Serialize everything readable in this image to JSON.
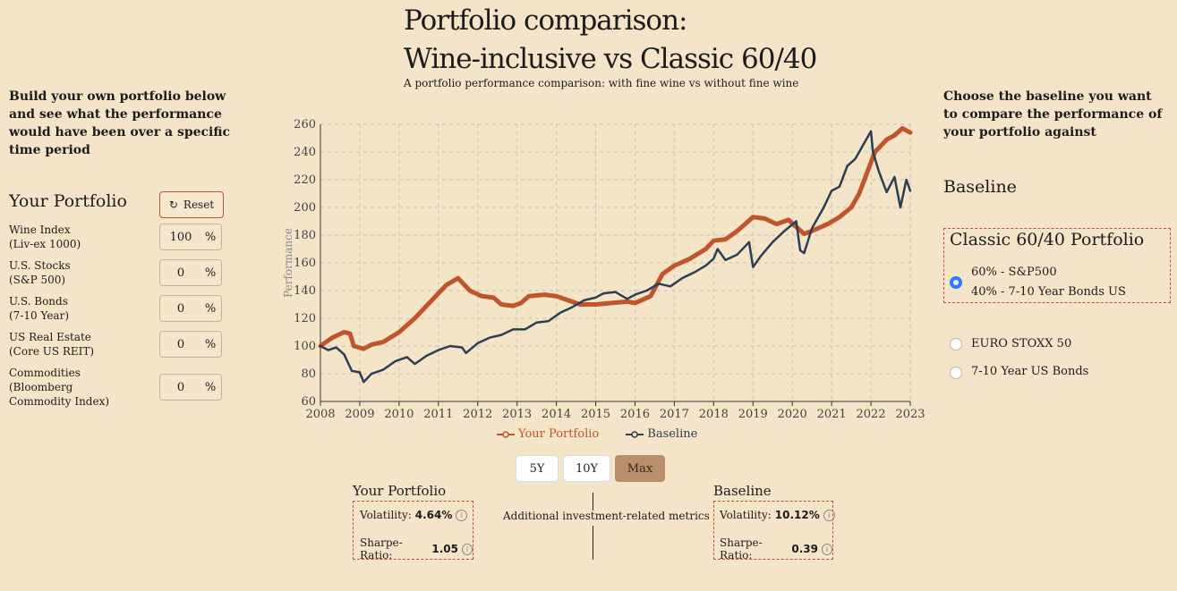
{
  "header": {
    "title_line1": "Portfolio comparison:",
    "title_line2": "Wine-inclusive vs Classic 60/40",
    "subtitle": "A portfolio performance comparison: with fine wine vs without fine wine"
  },
  "left": {
    "intro": "Build your own portfolio below and see what the performance would have been over a specific time period",
    "heading": "Your Portfolio",
    "reset_label": "Reset",
    "assets": [
      {
        "label": "Wine Index\n(Liv-ex 1000)",
        "value": "100",
        "unit": "%"
      },
      {
        "label": "U.S. Stocks\n(S&P 500)",
        "value": "0",
        "unit": "%"
      },
      {
        "label": "U.S. Bonds\n(7-10 Year)",
        "value": "0",
        "unit": "%"
      },
      {
        "label": "US Real Estate\n(Core US REIT)",
        "value": "0",
        "unit": "%"
      },
      {
        "label": "Commodities\n(Bloomberg\nCommodity Index)",
        "value": "0",
        "unit": "%"
      }
    ]
  },
  "right": {
    "intro": "Choose the baseline you want to compare the performance of your portfolio against",
    "heading": "Baseline",
    "options": [
      {
        "title": "Classic 60/40 Portfolio",
        "line1": "60% - S&P500",
        "line2": "40% - 7-10 Year Bonds US",
        "selected": true
      },
      {
        "title": "EURO STOXX 50",
        "selected": false
      },
      {
        "title": "7-10 Year US Bonds",
        "selected": false
      }
    ]
  },
  "chart_data": {
    "type": "line",
    "title": "",
    "xlabel": "",
    "ylabel": "Performance",
    "xlim": [
      2008,
      2023
    ],
    "ylim": [
      60,
      260
    ],
    "x_ticks": [
      "2008",
      "2009",
      "2010",
      "2011",
      "2012",
      "2013",
      "2014",
      "2015",
      "2016",
      "2017",
      "2018",
      "2019",
      "2020",
      "2021",
      "2022",
      "2023"
    ],
    "y_ticks": [
      60,
      80,
      100,
      120,
      140,
      160,
      180,
      200,
      220,
      240,
      260
    ],
    "grid": true,
    "legend": "bottom",
    "series": [
      {
        "name": "Your Portfolio",
        "color": "#c0542a",
        "points": [
          [
            2008,
            100
          ],
          [
            2008.3,
            106
          ],
          [
            2008.6,
            110
          ],
          [
            2008.75,
            109
          ],
          [
            2008.85,
            100
          ],
          [
            2009.1,
            98
          ],
          [
            2009.3,
            101
          ],
          [
            2009.6,
            103
          ],
          [
            2010,
            110
          ],
          [
            2010.4,
            120
          ],
          [
            2010.8,
            132
          ],
          [
            2011.2,
            144
          ],
          [
            2011.5,
            149
          ],
          [
            2011.8,
            140
          ],
          [
            2012.1,
            136
          ],
          [
            2012.4,
            135
          ],
          [
            2012.6,
            130
          ],
          [
            2012.9,
            129
          ],
          [
            2013.1,
            131
          ],
          [
            2013.3,
            136
          ],
          [
            2013.7,
            137
          ],
          [
            2014,
            136
          ],
          [
            2014.3,
            133
          ],
          [
            2014.6,
            130
          ],
          [
            2015,
            130
          ],
          [
            2015.4,
            131
          ],
          [
            2015.8,
            132
          ],
          [
            2016,
            131
          ],
          [
            2016.4,
            136
          ],
          [
            2016.7,
            152
          ],
          [
            2017,
            158
          ],
          [
            2017.4,
            163
          ],
          [
            2017.8,
            170
          ],
          [
            2018,
            176
          ],
          [
            2018.3,
            177
          ],
          [
            2018.6,
            183
          ],
          [
            2018.8,
            188
          ],
          [
            2019,
            193
          ],
          [
            2019.3,
            192
          ],
          [
            2019.6,
            188
          ],
          [
            2019.9,
            191
          ],
          [
            2020.1,
            186
          ],
          [
            2020.3,
            181
          ],
          [
            2020.5,
            183
          ],
          [
            2020.9,
            188
          ],
          [
            2021.2,
            193
          ],
          [
            2021.5,
            200
          ],
          [
            2021.7,
            210
          ],
          [
            2021.9,
            225
          ],
          [
            2022.1,
            240
          ],
          [
            2022.4,
            249
          ],
          [
            2022.6,
            252
          ],
          [
            2022.8,
            257
          ],
          [
            2023,
            254
          ]
        ]
      },
      {
        "name": "Baseline",
        "color": "#2a3f55",
        "points": [
          [
            2008,
            100
          ],
          [
            2008.2,
            97
          ],
          [
            2008.4,
            99
          ],
          [
            2008.6,
            94
          ],
          [
            2008.8,
            82
          ],
          [
            2009,
            81
          ],
          [
            2009.1,
            74
          ],
          [
            2009.3,
            80
          ],
          [
            2009.6,
            83
          ],
          [
            2009.9,
            89
          ],
          [
            2010.2,
            92
          ],
          [
            2010.4,
            87
          ],
          [
            2010.7,
            93
          ],
          [
            2011,
            97
          ],
          [
            2011.3,
            100
          ],
          [
            2011.6,
            99
          ],
          [
            2011.7,
            95
          ],
          [
            2012,
            102
          ],
          [
            2012.3,
            106
          ],
          [
            2012.6,
            108
          ],
          [
            2012.9,
            112
          ],
          [
            2013.2,
            112
          ],
          [
            2013.5,
            117
          ],
          [
            2013.8,
            118
          ],
          [
            2014.1,
            124
          ],
          [
            2014.4,
            128
          ],
          [
            2014.7,
            133
          ],
          [
            2015,
            135
          ],
          [
            2015.2,
            138
          ],
          [
            2015.5,
            139
          ],
          [
            2015.8,
            134
          ],
          [
            2016,
            137
          ],
          [
            2016.3,
            140
          ],
          [
            2016.6,
            145
          ],
          [
            2016.9,
            143
          ],
          [
            2017.2,
            149
          ],
          [
            2017.5,
            153
          ],
          [
            2017.8,
            158
          ],
          [
            2018,
            163
          ],
          [
            2018.1,
            170
          ],
          [
            2018.3,
            162
          ],
          [
            2018.6,
            166
          ],
          [
            2018.9,
            175
          ],
          [
            2019,
            157
          ],
          [
            2019.2,
            165
          ],
          [
            2019.5,
            175
          ],
          [
            2019.8,
            183
          ],
          [
            2020.1,
            190
          ],
          [
            2020.2,
            169
          ],
          [
            2020.3,
            167
          ],
          [
            2020.5,
            185
          ],
          [
            2020.8,
            200
          ],
          [
            2021,
            212
          ],
          [
            2021.2,
            215
          ],
          [
            2021.4,
            230
          ],
          [
            2021.6,
            235
          ],
          [
            2021.8,
            245
          ],
          [
            2022,
            255
          ],
          [
            2022.05,
            240
          ],
          [
            2022.2,
            226
          ],
          [
            2022.4,
            211
          ],
          [
            2022.6,
            222
          ],
          [
            2022.75,
            200
          ],
          [
            2022.9,
            220
          ],
          [
            2023,
            212
          ]
        ]
      }
    ]
  },
  "controls": {
    "ranges": [
      {
        "label": "5Y",
        "active": false
      },
      {
        "label": "10Y",
        "active": false
      },
      {
        "label": "Max",
        "active": true
      }
    ]
  },
  "metrics": {
    "your": {
      "title": "Your Portfolio",
      "volatility_label": "Volatility:",
      "volatility": "4.64%",
      "sharpe_label": "Sharpe-Ratio:",
      "sharpe": "1.05"
    },
    "middle_label": "Additional investment-related metrics",
    "baseline": {
      "title": "Baseline",
      "volatility_label": "Volatility:",
      "volatility": "10.12%",
      "sharpe_label": "Sharpe-Ratio:",
      "sharpe": "0.39"
    }
  }
}
